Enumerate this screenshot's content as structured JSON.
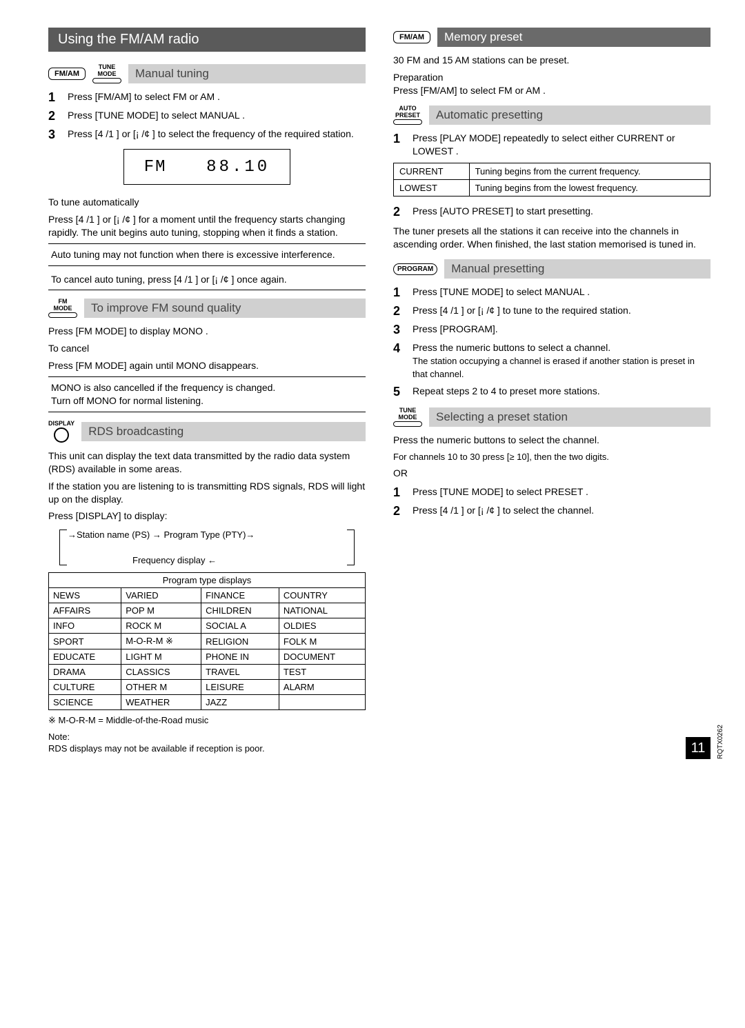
{
  "page_number": "11",
  "doc_code": "RQTX0262",
  "title": "Using the FM/AM radio",
  "manual_tuning": {
    "btn1": "FM/AM",
    "btn2_top": "TUNE",
    "btn2_bot": "MODE",
    "heading": "Manual tuning",
    "steps": [
      "Press [FM/AM] to select  FM  or  AM .",
      "Press [TUNE MODE] to select  MANUAL .",
      "Press  [4   /1   ]  or  [¡   /¢   ]  to select the frequency of the required station."
    ],
    "lcd_left": "FM",
    "lcd_right": "88.10",
    "auto_head": "To tune automatically",
    "auto_body": "Press [4   /1   ] or [¡   /¢   ] for a moment until the frequency starts changing rapidly. The unit begins auto tuning, stopping when it ﬁnds a station.",
    "note1": "Auto tuning may not function when there is excessive interference.",
    "note2": "To cancel auto tuning, press  [4   /1   ]  or [¡   /¢  ] once again."
  },
  "fm_quality": {
    "btn_top": "FM",
    "btn_bot": "MODE",
    "heading": "To improve FM sound quality",
    "line1": "Press [FM MODE] to display  MONO .",
    "cancel_head": "To cancel",
    "line2": "Press [FM MODE] again until  MONO  disappears.",
    "note": "MONO is also cancelled if the frequency is changed.\nTurn off  MONO  for normal listening."
  },
  "rds": {
    "btn_label": "DISPLAY",
    "heading": "RDS broadcasting",
    "para1": "This unit can display the text data transmitted by the radio data system (RDS) available in some areas.",
    "para2": "If the station you are listening to is transmitting RDS signals,  RDS  will light up on the display.",
    "para3": "Press [DISPLAY] to display:",
    "flow_top": "Station name (PS) → Program Type (PTY)",
    "flow_bot": "Frequency display ←",
    "table_header": "Program type displays",
    "rows": [
      [
        "NEWS",
        "VARIED",
        "FINANCE",
        "COUNTRY"
      ],
      [
        "AFFAIRS",
        "POP M",
        "CHILDREN",
        "NATIONAL"
      ],
      [
        "INFO",
        "ROCK M",
        "SOCIAL A",
        "OLDIES"
      ],
      [
        "SPORT",
        "M-O-R-M ※",
        "RELIGION",
        "FOLK M"
      ],
      [
        "EDUCATE",
        "LIGHT M",
        "PHONE IN",
        "DOCUMENT"
      ],
      [
        "DRAMA",
        "CLASSICS",
        "TRAVEL",
        "TEST"
      ],
      [
        "CULTURE",
        "OTHER M",
        "LEISURE",
        "ALARM"
      ],
      [
        "SCIENCE",
        "WEATHER",
        "JAZZ",
        ""
      ]
    ],
    "footnote1": "※ M-O-R-M = Middle-of-the-Road music",
    "footnote2_head": "Note:",
    "footnote2": "RDS displays may not be available if reception is poor."
  },
  "memory": {
    "btn": "FM/AM",
    "heading": "Memory preset",
    "intro": "30 FM and 15 AM stations can be preset.",
    "prep_head": "Preparation",
    "prep_body": "Press [FM/AM] to select  FM  or  AM ."
  },
  "auto_preset": {
    "btn_top": "AUTO",
    "btn_bot": "PRESET",
    "heading": "Automatic presetting",
    "step1": "Press [PLAY MODE] repeatedly to select either  CURRENT  or  LOWEST .",
    "table": [
      [
        "CURRENT",
        "Tuning begins from the current frequency."
      ],
      [
        "LOWEST",
        "Tuning begins from the lowest frequency."
      ]
    ],
    "step2": "Press [AUTO PRESET] to start presetting.",
    "after": "The tuner presets all the stations it can receive into the channels in ascending order. When ﬁnished, the last station memorised is tuned in."
  },
  "manual_preset": {
    "btn": "PROGRAM",
    "heading": "Manual presetting",
    "steps": [
      {
        "main": "Press [TUNE MODE] to select  MANUAL ."
      },
      {
        "main": "Press  [4   /1   ]  or  [¡   /¢   ]  to tune to the required station."
      },
      {
        "main": "Press [PROGRAM]."
      },
      {
        "main": "Press the numeric buttons to select a channel.",
        "sub": "The station occupying a channel is erased if another station is preset in that channel."
      },
      {
        "main": "Repeat steps 2 to 4 to preset more stations."
      }
    ]
  },
  "select_preset": {
    "btn_top": "TUNE",
    "btn_bot": "MODE",
    "heading": "Selecting a preset station",
    "line1": "Press the numeric buttons to select the channel.",
    "line2": "For channels 10 to 30 press [≥ 10], then the two digits.",
    "or": "OR",
    "steps": [
      "Press [TUNE MODE] to select  PRESET .",
      "Press  [4   /1   ]  or  [¡   /¢   ]  to select the channel."
    ]
  }
}
